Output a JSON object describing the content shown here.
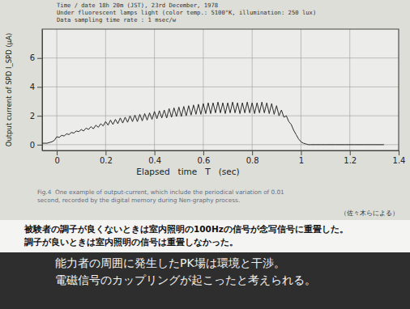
{
  "chart_data": {
    "type": "line",
    "title": "Time / date   18h 20m (JST), 23rd December, 1978",
    "subtitle": [
      "Under fluorescent lamps light (color temp.: 5100°K, illumination: 250 lux)",
      "Data sampling time rate : 1 msec/w"
    ],
    "y_label": "Output current of SPD   I_SPD (μA)",
    "x_label": "Elapsed   time   T   (sec)",
    "caption": [
      "Fig.4  One example of output-current, which include the periodical variation of 0.01",
      "second, recorded by the digital memory during Nen-graphy process."
    ],
    "source": "（佐々木らによる）",
    "notes": [
      "被験者の調子が良くないときは室内照明の100Hzの信号が念写信号に重畳した。",
      "調子が良いときは室内照明の信号は重畳しなかった。"
    ],
    "banner": [
      "能力者の周囲に発生したPK場は環境と干渉。",
      "電磁信号のカップリングが起こったと考えられる。"
    ],
    "x": [
      -0.06,
      -0.05,
      -0.04,
      -0.03,
      -0.02,
      -0.01,
      0.0,
      0.01,
      0.02,
      0.03,
      0.04,
      0.05,
      0.06,
      0.07,
      0.08,
      0.09,
      0.1,
      0.11,
      0.12,
      0.13,
      0.14,
      0.15,
      0.16,
      0.17,
      0.18,
      0.19,
      0.2,
      0.21,
      0.22,
      0.23,
      0.24,
      0.25,
      0.26,
      0.27,
      0.28,
      0.29,
      0.3,
      0.31,
      0.32,
      0.33,
      0.34,
      0.35,
      0.36,
      0.37,
      0.38,
      0.39,
      0.4,
      0.41,
      0.42,
      0.43,
      0.44,
      0.45,
      0.46,
      0.47,
      0.48,
      0.49,
      0.5,
      0.51,
      0.52,
      0.53,
      0.54,
      0.55,
      0.56,
      0.57,
      0.58,
      0.59,
      0.6,
      0.61,
      0.62,
      0.63,
      0.64,
      0.65,
      0.66,
      0.67,
      0.68,
      0.69,
      0.7,
      0.71,
      0.72,
      0.73,
      0.74,
      0.75,
      0.76,
      0.77,
      0.78,
      0.79,
      0.8,
      0.81,
      0.82,
      0.83,
      0.84,
      0.85,
      0.86,
      0.87,
      0.88,
      0.89,
      0.9,
      0.91,
      0.92,
      0.93,
      0.94,
      0.95,
      0.96,
      0.97,
      0.98,
      0.99,
      1.0,
      1.01,
      1.02,
      1.03,
      1.04,
      1.06,
      1.08,
      1.1,
      1.14,
      1.18,
      1.22,
      1.26,
      1.3,
      1.34
    ],
    "values": [
      0.1,
      0.1,
      0.1,
      0.15,
      0.2,
      0.3,
      0.55,
      0.5,
      0.65,
      0.6,
      0.75,
      0.7,
      0.85,
      0.8,
      0.95,
      0.9,
      1.05,
      0.95,
      1.15,
      1.05,
      1.25,
      1.1,
      1.35,
      1.2,
      1.45,
      1.3,
      1.6,
      1.35,
      1.7,
      1.4,
      1.75,
      1.45,
      1.85,
      1.5,
      1.9,
      1.55,
      2.0,
      1.6,
      2.05,
      1.6,
      2.1,
      1.65,
      2.15,
      1.7,
      2.2,
      1.75,
      2.3,
      1.8,
      2.35,
      1.85,
      2.4,
      1.85,
      2.5,
      1.9,
      2.55,
      1.95,
      2.6,
      1.95,
      2.65,
      2.0,
      2.7,
      2.05,
      2.75,
      2.1,
      2.8,
      2.1,
      2.85,
      2.15,
      2.9,
      2.15,
      2.9,
      2.2,
      2.95,
      2.2,
      2.9,
      2.15,
      2.9,
      2.2,
      2.95,
      2.2,
      2.9,
      2.15,
      2.9,
      2.2,
      2.95,
      2.2,
      2.9,
      2.15,
      2.9,
      2.2,
      2.95,
      2.2,
      2.9,
      2.15,
      2.85,
      2.1,
      2.7,
      2.0,
      2.4,
      1.9,
      2.0,
      1.6,
      1.4,
      1.0,
      0.7,
      0.4,
      0.2,
      0.1,
      0.05,
      0.0,
      0.0,
      0.0,
      0.0,
      0.0,
      0.0,
      0.0,
      0.0,
      0.0,
      0.0,
      0.0
    ],
    "color": "#2b2b2b",
    "line_style": "solid",
    "xlim": [
      -0.06,
      1.4
    ],
    "ylim": [
      -0.4,
      8
    ],
    "xticks": [
      0,
      0.2,
      0.4,
      0.6,
      0.8,
      1.0,
      1.2,
      1.4
    ],
    "yticks": [
      0,
      2,
      4,
      6
    ],
    "grid": true
  }
}
